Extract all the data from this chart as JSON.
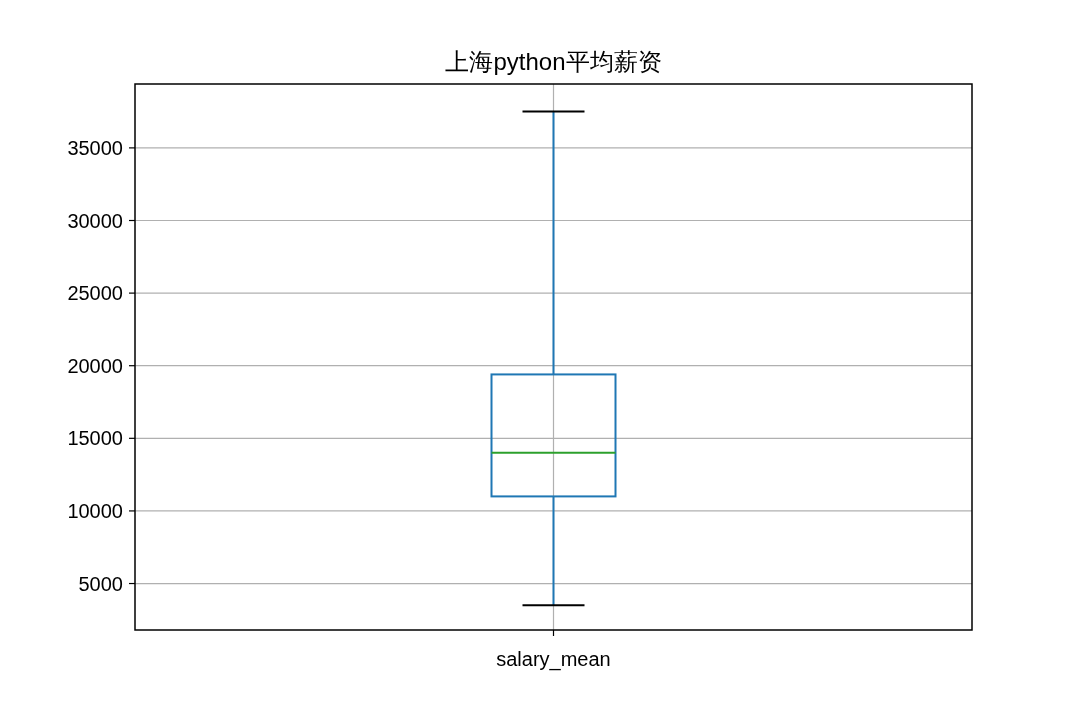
{
  "chart_data": {
    "type": "box",
    "title": "上海python平均薪资",
    "categories": [
      "salary_mean"
    ],
    "boxes": [
      {
        "low": 3500,
        "q1": 11000,
        "median": 14000,
        "q3": 19400,
        "high": 37500
      }
    ],
    "color": "#1f77b4",
    "ylim": [
      1800,
      39400
    ],
    "yticks": [
      5000,
      10000,
      15000,
      20000,
      25000,
      30000,
      35000
    ],
    "grid": true
  }
}
